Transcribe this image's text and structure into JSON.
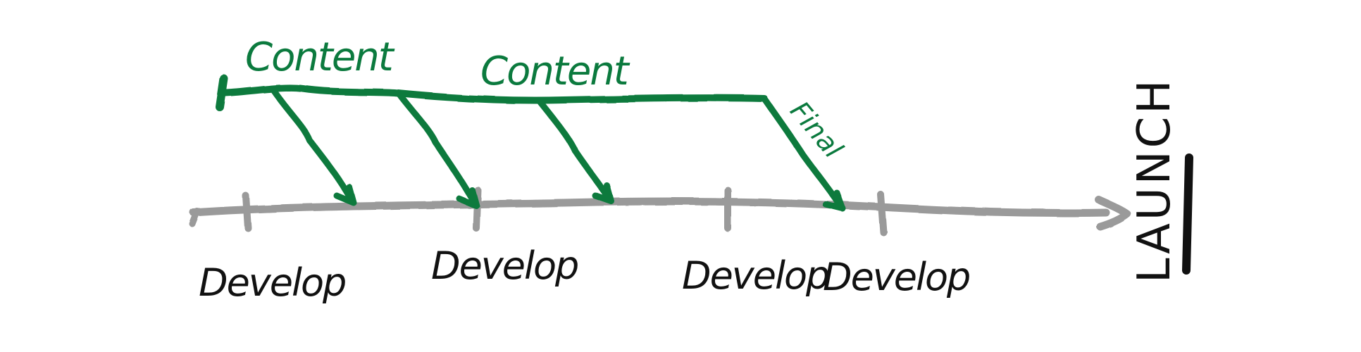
{
  "colors": {
    "content_track": "#0b7a3e",
    "develop_track": "#999999",
    "ink": "#111111",
    "background": "#ffffff"
  },
  "labels": {
    "content_1": "Content",
    "content_2": "Content",
    "final": "Final",
    "develop_1": "Develop",
    "develop_2": "Develop",
    "develop_3": "Develop",
    "develop_4": "Develop",
    "launch": "LAUNCH"
  }
}
